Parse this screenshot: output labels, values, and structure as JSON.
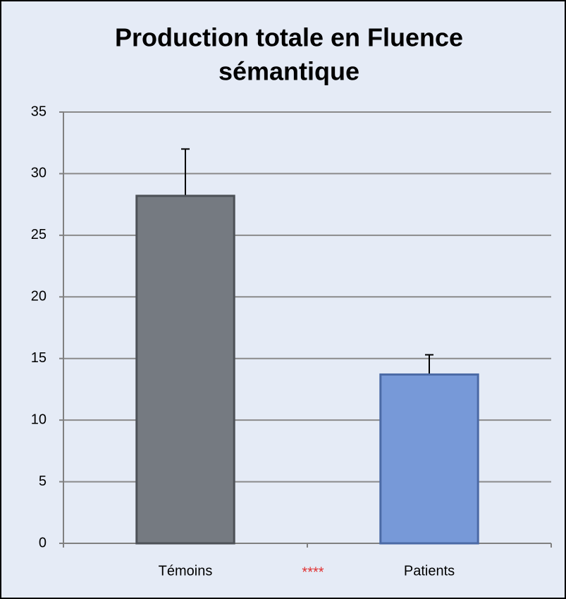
{
  "chart_data": {
    "type": "bar",
    "title": [
      "Production totale en Fluence",
      "sémantique"
    ],
    "categories": [
      "Témoins",
      "Patients"
    ],
    "series": [
      {
        "name": "Fluence",
        "colors": [
          "#757a81",
          "#7799d8"
        ],
        "values": [
          28.2,
          13.7
        ],
        "errors": [
          3.8,
          1.6
        ]
      }
    ],
    "annotation": "****",
    "ylim": [
      0,
      35
    ],
    "yticks": [
      0,
      5,
      10,
      15,
      20,
      25,
      30,
      35
    ],
    "grid": true
  }
}
